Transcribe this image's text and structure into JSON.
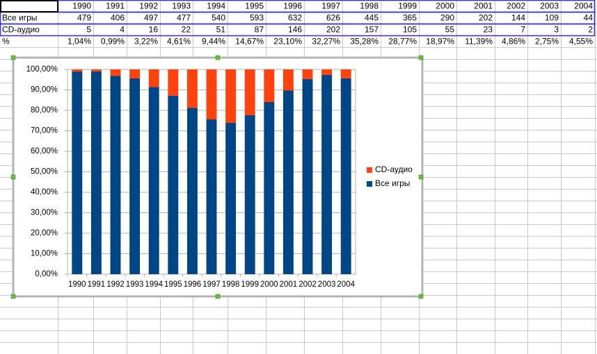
{
  "sheet": {
    "columns": [
      "1990",
      "1991",
      "1992",
      "1993",
      "1994",
      "1995",
      "1996",
      "1997",
      "1998",
      "1999",
      "2000",
      "2001",
      "2002",
      "2003",
      "2004"
    ],
    "rows": [
      {
        "label": "Все игры",
        "cells": [
          "479",
          "406",
          "497",
          "477",
          "540",
          "593",
          "632",
          "626",
          "445",
          "365",
          "290",
          "202",
          "144",
          "109",
          "44"
        ]
      },
      {
        "label": "CD-аудио",
        "cells": [
          "5",
          "4",
          "16",
          "22",
          "51",
          "87",
          "146",
          "202",
          "157",
          "105",
          "55",
          "23",
          "7",
          "3",
          "2"
        ]
      },
      {
        "label": "%",
        "cells": [
          "1,04%",
          "0,99%",
          "3,22%",
          "4,61%",
          "9,44%",
          "14,67%",
          "23,10%",
          "32,27%",
          "35,28%",
          "28,77%",
          "18,97%",
          "11,39%",
          "4,86%",
          "2,75%",
          "4,55%"
        ]
      }
    ]
  },
  "chart_data": {
    "type": "stacked_bar_100",
    "categories": [
      "1990",
      "1991",
      "1992",
      "1993",
      "1994",
      "1995",
      "1996",
      "1997",
      "1998",
      "1999",
      "2000",
      "2001",
      "2002",
      "2003",
      "2004"
    ],
    "series": [
      {
        "name": "Все игры",
        "color": "#004586",
        "values": [
          98.97,
          99.02,
          96.88,
          95.59,
          91.37,
          87.21,
          81.23,
          75.6,
          73.92,
          77.66,
          84.06,
          89.78,
          95.36,
          97.32,
          95.65
        ]
      },
      {
        "name": "CD-аудио",
        "color": "#ff420e",
        "values": [
          1.03,
          0.98,
          3.12,
          4.41,
          8.63,
          12.79,
          18.77,
          24.4,
          26.08,
          22.34,
          15.94,
          10.22,
          4.64,
          2.68,
          4.35
        ]
      }
    ],
    "ylim": [
      0,
      100
    ],
    "yticks": [
      {
        "value": 0,
        "label": "0,00%"
      },
      {
        "value": 10,
        "label": "10,00%"
      },
      {
        "value": 20,
        "label": "20,00%"
      },
      {
        "value": 30,
        "label": "30,00%"
      },
      {
        "value": 40,
        "label": "40,00%"
      },
      {
        "value": 50,
        "label": "50,00%"
      },
      {
        "value": 60,
        "label": "60,00%"
      },
      {
        "value": 70,
        "label": "70,00%"
      },
      {
        "value": 80,
        "label": "80,00%"
      },
      {
        "value": 90,
        "label": "90,00%"
      },
      {
        "value": 100,
        "label": "100,00%"
      }
    ],
    "grid": true,
    "legend": "right"
  }
}
